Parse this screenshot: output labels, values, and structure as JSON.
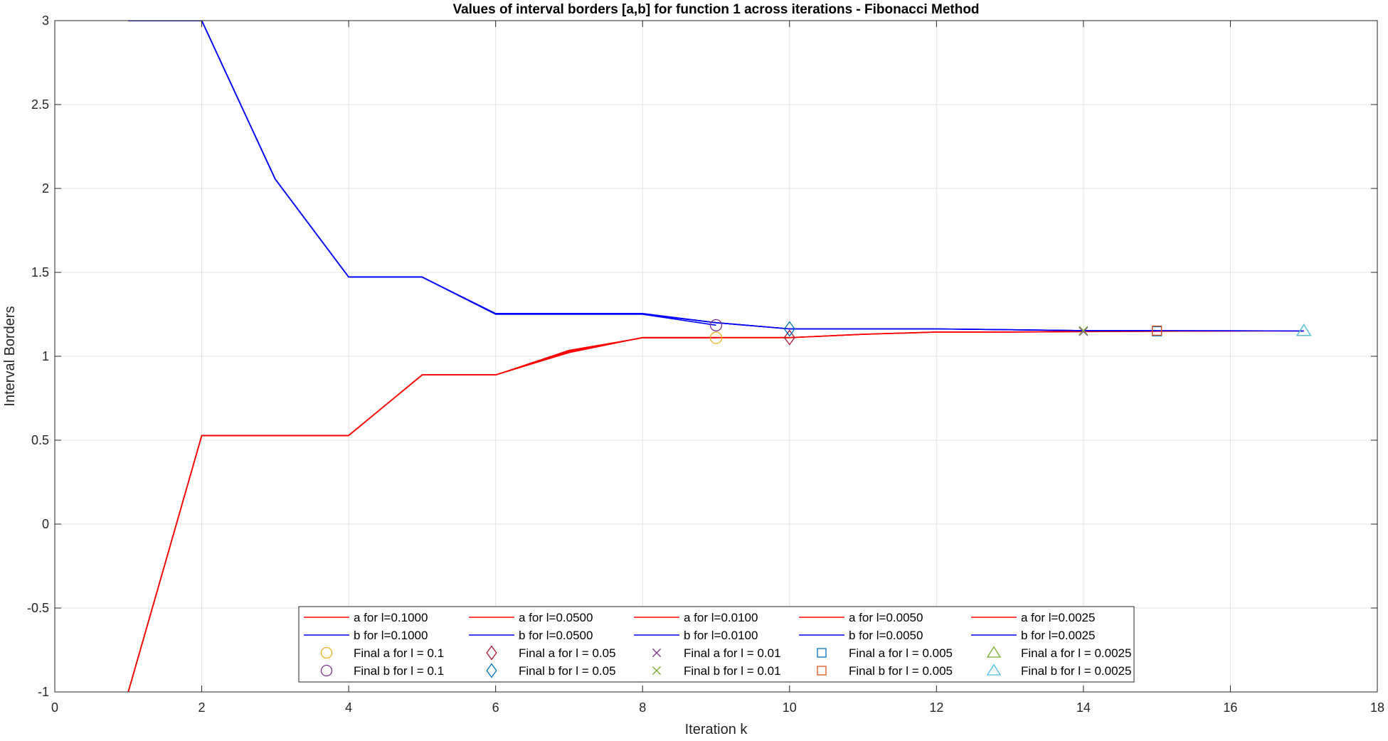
{
  "chart_data": {
    "type": "line",
    "title": "Values of interval borders [a,b] for function 1 across iterations - Fibonacci Method",
    "xlabel": "Iteration k",
    "ylabel": "Interval Borders",
    "xlim": [
      0,
      18
    ],
    "ylim": [
      -1,
      3
    ],
    "xticks": [
      "0",
      "2",
      "4",
      "6",
      "8",
      "10",
      "12",
      "14",
      "16",
      "18"
    ],
    "yticks": [
      "-1",
      "-0.5",
      "0",
      "0.5",
      "1",
      "1.5",
      "2",
      "2.5",
      "3"
    ],
    "grid": true,
    "legend_position": "bottom-center",
    "colors": {
      "a_line": "#ff0000",
      "b_line": "#0000ff",
      "grid": "#e3e3e3",
      "axis": "#262626"
    },
    "series": [
      {
        "name": "a for l=0.1000",
        "color": "#ff0000",
        "x": [
          1,
          2,
          3,
          4,
          5,
          6,
          7,
          8,
          9
        ],
        "y": [
          -1.0,
          0.528,
          0.528,
          0.528,
          0.889,
          0.889,
          1.035,
          1.11,
          1.11
        ]
      },
      {
        "name": "a for l=0.0500",
        "color": "#ff0000",
        "x": [
          1,
          2,
          3,
          4,
          5,
          6,
          7,
          8,
          9,
          10
        ],
        "y": [
          -1.0,
          0.528,
          0.528,
          0.528,
          0.889,
          0.889,
          1.022,
          1.112,
          1.112,
          1.112
        ]
      },
      {
        "name": "a for l=0.0100",
        "color": "#ff0000",
        "x": [
          1,
          2,
          3,
          4,
          5,
          6,
          7,
          8,
          9,
          10,
          11,
          12,
          13,
          14
        ],
        "y": [
          -1.0,
          0.528,
          0.528,
          0.528,
          0.889,
          0.889,
          1.028,
          1.111,
          1.111,
          1.111,
          1.131,
          1.145,
          1.145,
          1.148
        ]
      },
      {
        "name": "a for l=0.0050",
        "color": "#ff0000",
        "x": [
          1,
          2,
          3,
          4,
          5,
          6,
          7,
          8,
          9,
          10,
          11,
          12,
          13,
          14,
          15
        ],
        "y": [
          -1.0,
          0.528,
          0.528,
          0.528,
          0.889,
          0.889,
          1.028,
          1.111,
          1.111,
          1.111,
          1.131,
          1.144,
          1.144,
          1.147,
          1.149
        ]
      },
      {
        "name": "a for l=0.0025",
        "color": "#ff0000",
        "x": [
          1,
          2,
          3,
          4,
          5,
          6,
          7,
          8,
          9,
          10,
          11,
          12,
          13,
          14,
          15,
          16,
          17
        ],
        "y": [
          -1.0,
          0.528,
          0.528,
          0.528,
          0.889,
          0.889,
          1.028,
          1.111,
          1.111,
          1.111,
          1.131,
          1.144,
          1.144,
          1.147,
          1.149,
          1.15,
          1.151
        ]
      },
      {
        "name": "b for l=0.1000",
        "color": "#0000ff",
        "x": [
          1,
          2,
          3,
          4,
          5,
          6,
          7,
          8,
          9
        ],
        "y": [
          3.0,
          3.0,
          2.056,
          1.472,
          1.472,
          1.25,
          1.25,
          1.25,
          1.185
        ]
      },
      {
        "name": "b for l=0.0500",
        "color": "#0000ff",
        "x": [
          1,
          2,
          3,
          4,
          5,
          6,
          7,
          8,
          9,
          10
        ],
        "y": [
          3.0,
          3.0,
          2.056,
          1.472,
          1.472,
          1.255,
          1.255,
          1.255,
          1.2,
          1.163
        ]
      },
      {
        "name": "b for l=0.0100",
        "color": "#0000ff",
        "x": [
          1,
          2,
          3,
          4,
          5,
          6,
          7,
          8,
          9,
          10,
          11,
          12,
          13,
          14
        ],
        "y": [
          3.0,
          3.0,
          2.056,
          1.472,
          1.472,
          1.252,
          1.252,
          1.252,
          1.2,
          1.163,
          1.163,
          1.163,
          1.158,
          1.153
        ]
      },
      {
        "name": "b for l=0.0050",
        "color": "#0000ff",
        "x": [
          1,
          2,
          3,
          4,
          5,
          6,
          7,
          8,
          9,
          10,
          11,
          12,
          13,
          14,
          15
        ],
        "y": [
          3.0,
          3.0,
          2.056,
          1.472,
          1.472,
          1.252,
          1.252,
          1.252,
          1.2,
          1.163,
          1.163,
          1.163,
          1.158,
          1.153,
          1.153
        ]
      },
      {
        "name": "b for l=0.0025",
        "color": "#0000ff",
        "x": [
          1,
          2,
          3,
          4,
          5,
          6,
          7,
          8,
          9,
          10,
          11,
          12,
          13,
          14,
          15,
          16,
          17
        ],
        "y": [
          3.0,
          3.0,
          2.056,
          1.472,
          1.472,
          1.252,
          1.252,
          1.252,
          1.2,
          1.163,
          1.163,
          1.163,
          1.158,
          1.153,
          1.153,
          1.152,
          1.151
        ]
      }
    ],
    "markers": [
      {
        "name": "Final a for l = 0.1",
        "symbol": "circle",
        "color": "#edb120",
        "x": 9,
        "y": 1.11
      },
      {
        "name": "Final b for l = 0.1",
        "symbol": "circle",
        "color": "#7e2f8e",
        "x": 9,
        "y": 1.185
      },
      {
        "name": "Final a for l = 0.05",
        "symbol": "diamond",
        "color": "#a2142f",
        "x": 10,
        "y": 1.112
      },
      {
        "name": "Final b for l = 0.05",
        "symbol": "diamond",
        "color": "#0072bd",
        "x": 10,
        "y": 1.163
      },
      {
        "name": "Final a for l = 0.01",
        "symbol": "x",
        "color": "#7e2f8e",
        "x": 14,
        "y": 1.148
      },
      {
        "name": "Final b for l = 0.01",
        "symbol": "x",
        "color": "#77ac30",
        "x": 14,
        "y": 1.153
      },
      {
        "name": "Final a for l = 0.005",
        "symbol": "square",
        "color": "#0072bd",
        "x": 15,
        "y": 1.149
      },
      {
        "name": "Final b for l = 0.005",
        "symbol": "square",
        "color": "#d95319",
        "x": 15,
        "y": 1.153
      },
      {
        "name": "Final a for l = 0.0025",
        "symbol": "triangle",
        "color": "#77ac30",
        "x": 17,
        "y": 1.151
      },
      {
        "name": "Final b for l = 0.0025",
        "symbol": "triangle",
        "color": "#4dbeee",
        "x": 17,
        "y": 1.151
      }
    ]
  }
}
